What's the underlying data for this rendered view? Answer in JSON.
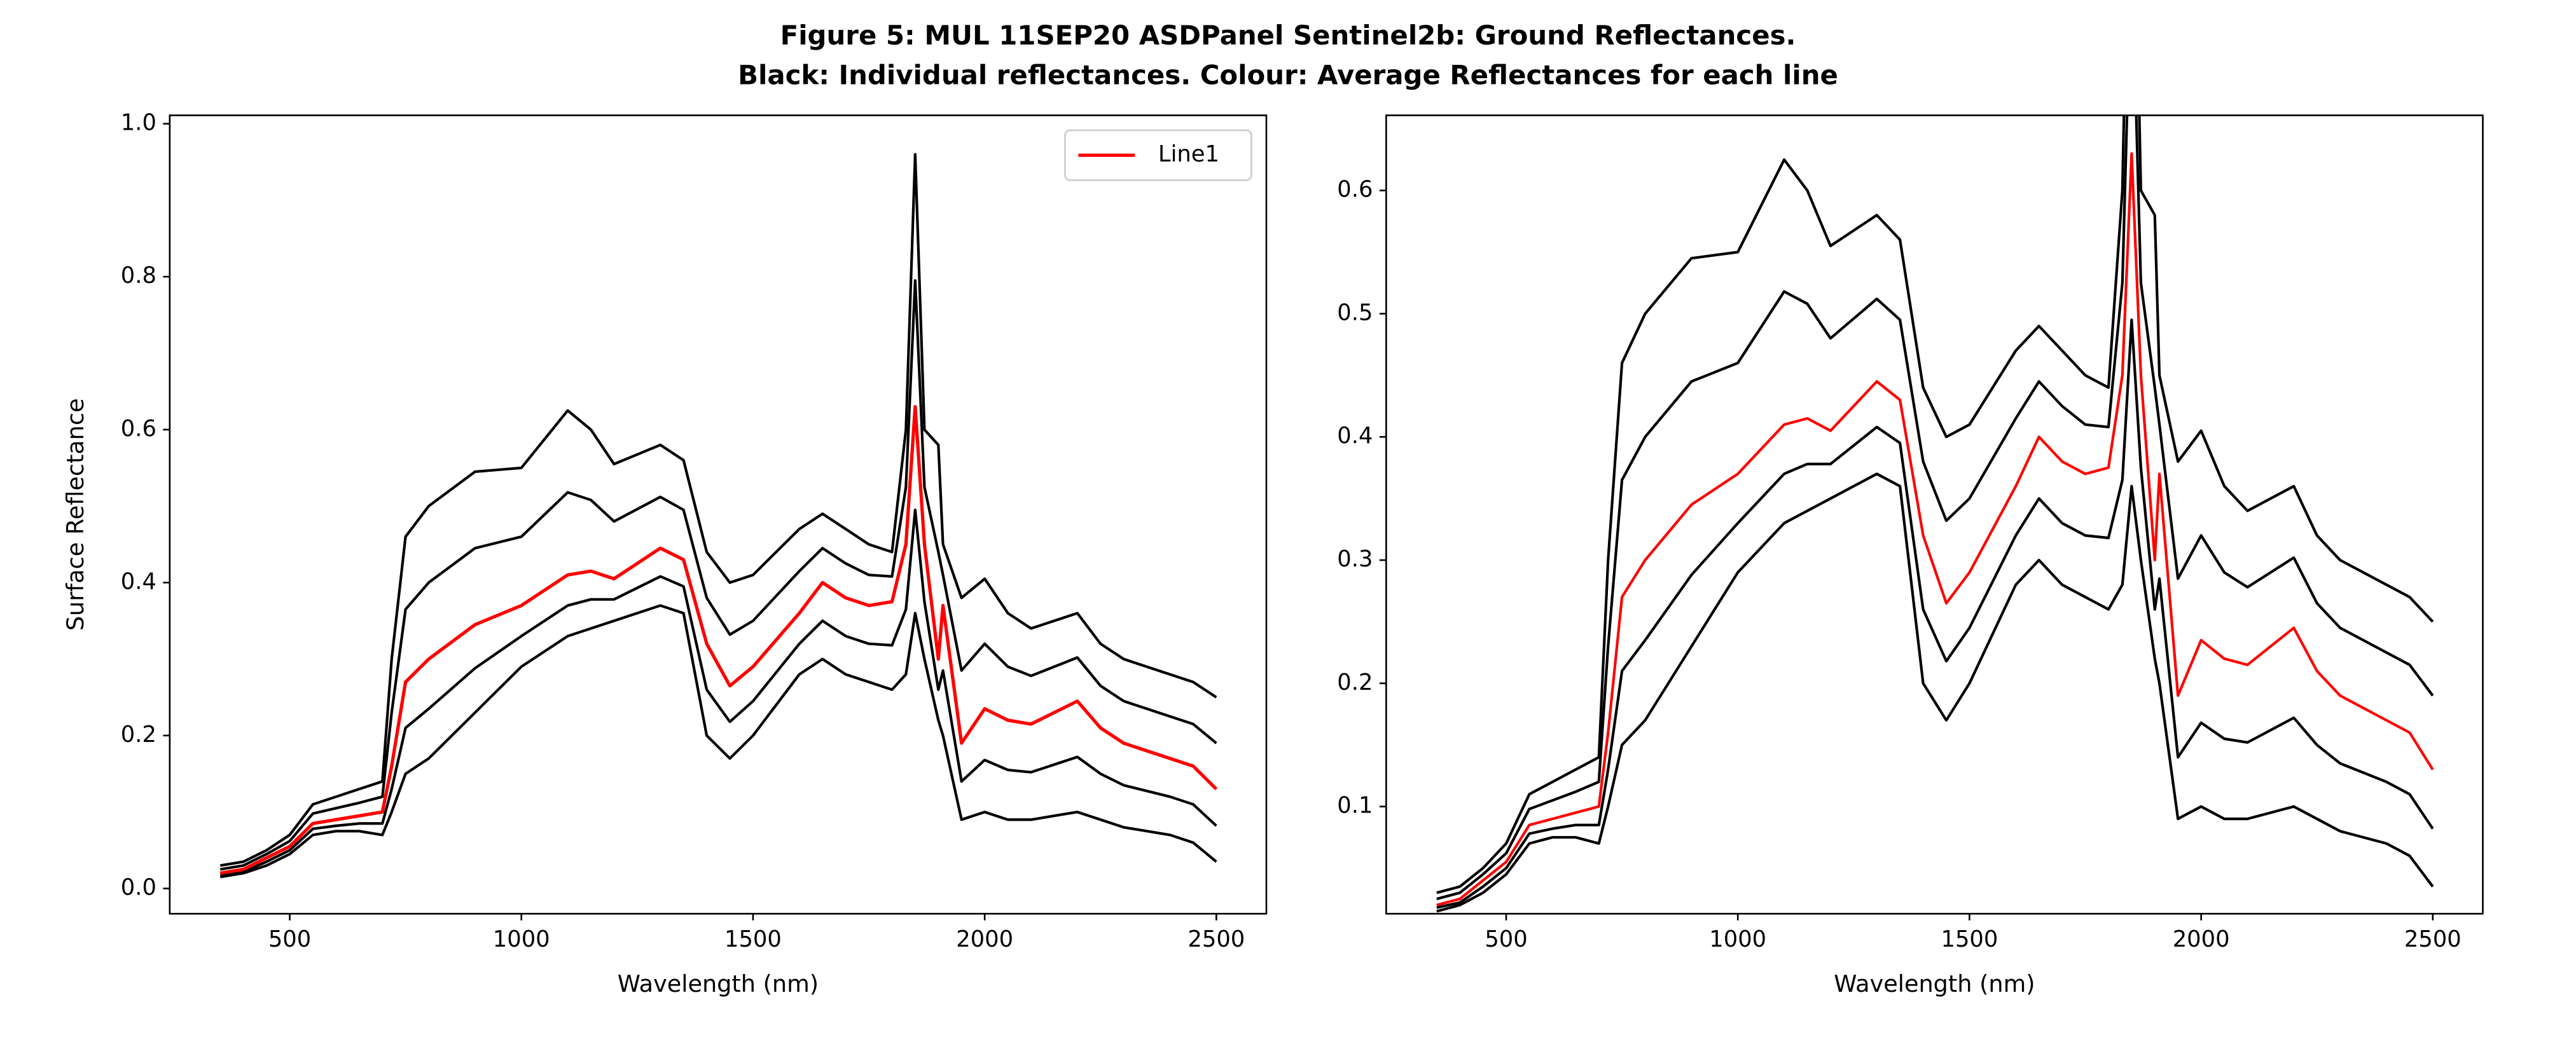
{
  "title": [
    "Figure 5: MUL 11SEP20 ASDPanel Sentinel2b: Ground Reflectances.",
    "Black: Individual reflectances. Colour: Average Reflectances for each line"
  ],
  "chart_data": [
    {
      "type": "line",
      "xlabel": "Wavelength (nm)",
      "ylabel": "Surface Reflectance",
      "legend": "upper right",
      "xlim": [
        241,
        2608
      ],
      "ylim": [
        -0.033,
        1.011
      ],
      "xticks": [
        500,
        1000,
        1500,
        2000,
        2500
      ],
      "yticks": [
        {
          "value": 0,
          "label": "0.0"
        },
        0.2,
        0.4,
        0.6,
        0.8,
        {
          "value": 1,
          "label": "1.0"
        }
      ],
      "x": [
        350,
        400,
        450,
        500,
        550,
        600,
        650,
        700,
        720,
        750,
        800,
        900,
        1000,
        1100,
        1150,
        1200,
        1300,
        1350,
        1400,
        1450,
        1500,
        1600,
        1650,
        1700,
        1750,
        1800,
        1830,
        1850,
        1870,
        1900,
        1910,
        1950,
        2000,
        2050,
        2100,
        2200,
        2250,
        2300,
        2400,
        2450,
        2500
      ],
      "series": [
        {
          "color": "#000000",
          "values": [
            0.03,
            0.035,
            0.05,
            0.07,
            0.11,
            0.12,
            0.13,
            0.14,
            0.3,
            0.46,
            0.5,
            0.545,
            0.55,
            0.625,
            0.6,
            0.555,
            0.58,
            0.56,
            0.44,
            0.4,
            0.41,
            0.47,
            0.49,
            0.47,
            0.45,
            0.44,
            0.6,
            0.96,
            0.6,
            0.58,
            0.45,
            0.38,
            0.405,
            0.36,
            0.34,
            0.36,
            0.32,
            0.3,
            0.28,
            0.27,
            0.25
          ]
        },
        {
          "color": "#000000",
          "values": [
            0.025,
            0.03,
            0.045,
            0.062,
            0.098,
            0.105,
            0.112,
            0.12,
            0.23,
            0.365,
            0.4,
            0.445,
            0.46,
            0.518,
            0.508,
            0.48,
            0.512,
            0.495,
            0.38,
            0.332,
            0.35,
            0.415,
            0.445,
            0.425,
            0.41,
            0.408,
            0.525,
            0.795,
            0.525,
            0.44,
            0.41,
            0.285,
            0.32,
            0.29,
            0.278,
            0.302,
            0.265,
            0.245,
            0.225,
            0.215,
            0.19
          ]
        },
        {
          "color": "#000000",
          "values": [
            0.018,
            0.022,
            0.035,
            0.05,
            0.078,
            0.082,
            0.085,
            0.085,
            0.13,
            0.21,
            0.235,
            0.288,
            0.33,
            0.37,
            0.378,
            0.378,
            0.408,
            0.395,
            0.26,
            0.218,
            0.245,
            0.32,
            0.35,
            0.33,
            0.32,
            0.318,
            0.365,
            0.495,
            0.375,
            0.26,
            0.285,
            0.14,
            0.168,
            0.155,
            0.152,
            0.172,
            0.15,
            0.135,
            0.12,
            0.11,
            0.082
          ]
        },
        {
          "color": "#000000",
          "values": [
            0.015,
            0.02,
            0.03,
            0.045,
            0.07,
            0.075,
            0.075,
            0.07,
            0.1,
            0.15,
            0.17,
            0.23,
            0.29,
            0.33,
            0.34,
            0.35,
            0.37,
            0.36,
            0.2,
            0.17,
            0.2,
            0.28,
            0.3,
            0.28,
            0.27,
            0.26,
            0.28,
            0.36,
            0.3,
            0.22,
            0.2,
            0.09,
            0.1,
            0.09,
            0.09,
            0.1,
            0.09,
            0.08,
            0.07,
            0.06,
            0.035
          ]
        },
        {
          "name": "Line1",
          "color": "#ff0000",
          "values": [
            0.02,
            0.025,
            0.04,
            0.055,
            0.085,
            0.09,
            0.095,
            0.1,
            0.16,
            0.27,
            0.3,
            0.345,
            0.37,
            0.41,
            0.415,
            0.405,
            0.445,
            0.43,
            0.32,
            0.265,
            0.29,
            0.36,
            0.4,
            0.38,
            0.37,
            0.375,
            0.45,
            0.63,
            0.45,
            0.3,
            0.37,
            0.19,
            0.235,
            0.22,
            0.215,
            0.245,
            0.21,
            0.19,
            0.17,
            0.16,
            0.13
          ]
        }
      ]
    },
    {
      "type": "line",
      "xlabel": "Wavelength (nm)",
      "xlim": [
        241,
        2608
      ],
      "ylim": [
        0.013,
        0.661
      ],
      "xticks": [
        500,
        1000,
        1500,
        2000,
        2500
      ],
      "yticks": [
        0.1,
        0.2,
        0.3,
        0.4,
        0.5,
        0.6
      ],
      "x": [
        350,
        400,
        450,
        500,
        550,
        600,
        650,
        700,
        720,
        750,
        800,
        900,
        1000,
        1100,
        1150,
        1200,
        1300,
        1350,
        1400,
        1450,
        1500,
        1600,
        1650,
        1700,
        1750,
        1800,
        1830,
        1850,
        1870,
        1900,
        1910,
        1950,
        2000,
        2050,
        2100,
        2200,
        2250,
        2300,
        2400,
        2450,
        2500
      ],
      "series": [
        {
          "color": "#000000",
          "values": [
            0.03,
            0.035,
            0.05,
            0.07,
            0.11,
            0.12,
            0.13,
            0.14,
            0.3,
            0.46,
            0.5,
            0.545,
            0.55,
            0.625,
            0.6,
            0.555,
            0.58,
            0.56,
            0.44,
            0.4,
            0.41,
            0.47,
            0.49,
            0.47,
            0.45,
            0.44,
            0.6,
            0.96,
            0.6,
            0.58,
            0.45,
            0.38,
            0.405,
            0.36,
            0.34,
            0.36,
            0.32,
            0.3,
            0.28,
            0.27,
            0.25
          ]
        },
        {
          "color": "#000000",
          "values": [
            0.025,
            0.03,
            0.045,
            0.062,
            0.098,
            0.105,
            0.112,
            0.12,
            0.23,
            0.365,
            0.4,
            0.445,
            0.46,
            0.518,
            0.508,
            0.48,
            0.512,
            0.495,
            0.38,
            0.332,
            0.35,
            0.415,
            0.445,
            0.425,
            0.41,
            0.408,
            0.525,
            0.795,
            0.525,
            0.44,
            0.41,
            0.285,
            0.32,
            0.29,
            0.278,
            0.302,
            0.265,
            0.245,
            0.225,
            0.215,
            0.19
          ]
        },
        {
          "color": "#000000",
          "values": [
            0.018,
            0.022,
            0.035,
            0.05,
            0.078,
            0.082,
            0.085,
            0.085,
            0.13,
            0.21,
            0.235,
            0.288,
            0.33,
            0.37,
            0.378,
            0.378,
            0.408,
            0.395,
            0.26,
            0.218,
            0.245,
            0.32,
            0.35,
            0.33,
            0.32,
            0.318,
            0.365,
            0.495,
            0.375,
            0.26,
            0.285,
            0.14,
            0.168,
            0.155,
            0.152,
            0.172,
            0.15,
            0.135,
            0.12,
            0.11,
            0.082
          ]
        },
        {
          "color": "#000000",
          "values": [
            0.015,
            0.02,
            0.03,
            0.045,
            0.07,
            0.075,
            0.075,
            0.07,
            0.1,
            0.15,
            0.17,
            0.23,
            0.29,
            0.33,
            0.34,
            0.35,
            0.37,
            0.36,
            0.2,
            0.17,
            0.2,
            0.28,
            0.3,
            0.28,
            0.27,
            0.26,
            0.28,
            0.36,
            0.3,
            0.22,
            0.2,
            0.09,
            0.1,
            0.09,
            0.09,
            0.1,
            0.09,
            0.08,
            0.07,
            0.06,
            0.035
          ]
        },
        {
          "color": "#ff0000",
          "values": [
            0.02,
            0.025,
            0.04,
            0.055,
            0.085,
            0.09,
            0.095,
            0.1,
            0.16,
            0.27,
            0.3,
            0.345,
            0.37,
            0.41,
            0.415,
            0.405,
            0.445,
            0.43,
            0.32,
            0.265,
            0.29,
            0.36,
            0.4,
            0.38,
            0.37,
            0.375,
            0.45,
            0.63,
            0.45,
            0.3,
            0.37,
            0.19,
            0.235,
            0.22,
            0.215,
            0.245,
            0.21,
            0.19,
            0.17,
            0.16,
            0.13
          ]
        }
      ]
    }
  ]
}
